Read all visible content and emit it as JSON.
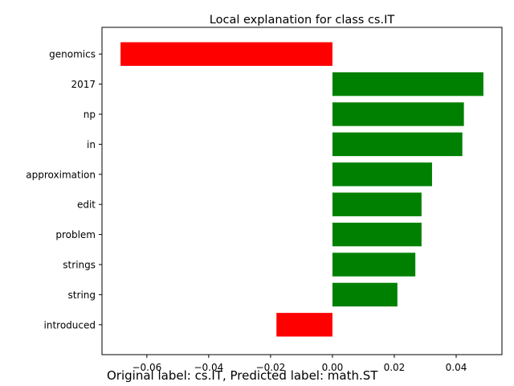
{
  "chart_data": {
    "type": "bar",
    "orientation": "horizontal",
    "title": "Local explanation for class cs.IT",
    "xlabel": "",
    "ylabel": "",
    "categories": [
      "genomics",
      "2017",
      "np",
      "in",
      "approximation",
      "edit",
      "problem",
      "strings",
      "string",
      "introduced"
    ],
    "values": [
      -0.0685,
      0.0488,
      0.0425,
      0.042,
      0.0322,
      0.0288,
      0.0288,
      0.0268,
      0.021,
      -0.0181
    ],
    "xlim": [
      -0.0745,
      0.0548
    ],
    "xticks": [
      -0.06,
      -0.04,
      -0.02,
      0.0,
      0.02,
      0.04
    ],
    "xtick_labels": [
      "−0.06",
      "−0.04",
      "−0.02",
      "0.00",
      "0.02",
      "0.04"
    ],
    "colors": {
      "positive": "#008000",
      "negative": "#ff0000"
    },
    "grid": false
  },
  "caption": "Original label: cs.IT, Predicted label: math.ST"
}
